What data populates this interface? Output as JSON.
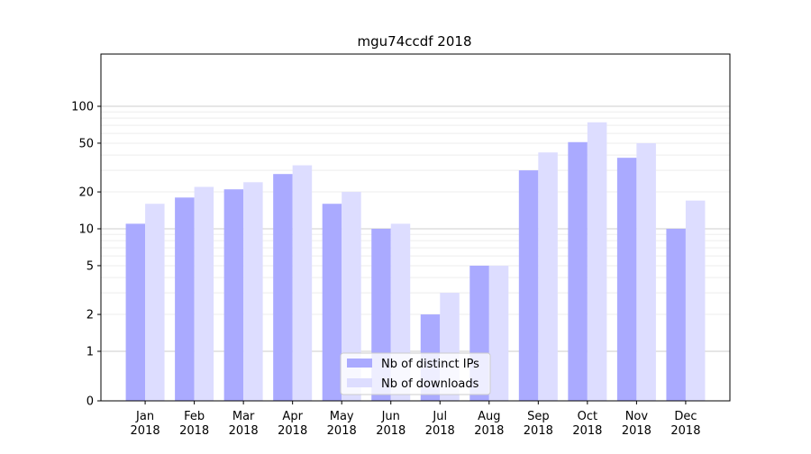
{
  "chart_data": {
    "type": "bar",
    "title": "mgu74ccdf 2018",
    "xlabel": "",
    "ylabel": "",
    "yscale": "symlog",
    "ylim": [
      0,
      130
    ],
    "yticks": [
      0,
      1,
      2,
      5,
      10,
      20,
      50,
      100
    ],
    "ytick_labels": [
      "0",
      "1",
      "2",
      "5",
      "10",
      "20",
      "50",
      "100"
    ],
    "categories": [
      [
        "Jan",
        "2018"
      ],
      [
        "Feb",
        "2018"
      ],
      [
        "Mar",
        "2018"
      ],
      [
        "Apr",
        "2018"
      ],
      [
        "May",
        "2018"
      ],
      [
        "Jun",
        "2018"
      ],
      [
        "Jul",
        "2018"
      ],
      [
        "Aug",
        "2018"
      ],
      [
        "Sep",
        "2018"
      ],
      [
        "Oct",
        "2018"
      ],
      [
        "Nov",
        "2018"
      ],
      [
        "Dec",
        "2018"
      ]
    ],
    "series": [
      {
        "name": "Nb of distinct IPs",
        "color": "#aaaaff",
        "values": [
          11,
          18,
          21,
          28,
          16,
          10,
          2,
          5,
          30,
          51,
          38,
          10
        ]
      },
      {
        "name": "Nb of downloads",
        "color": "#ddddff",
        "values": [
          16,
          22,
          24,
          33,
          20,
          11,
          3,
          5,
          42,
          74,
          50,
          17
        ]
      }
    ],
    "grid": true,
    "legend_position": "bottom-center"
  }
}
